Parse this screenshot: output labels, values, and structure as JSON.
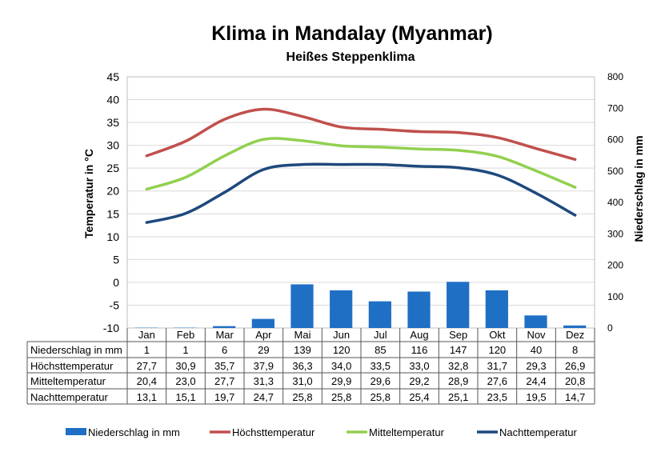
{
  "chart_data": {
    "type": "bar+line",
    "title": "Klima in Mandalay (Myanmar)",
    "subtitle": "Heißes Steppenklima",
    "ylabel": "Temperatur in °C",
    "y2label": "Niederschlag in mm",
    "ylim": [
      -10,
      45
    ],
    "y2lim": [
      0,
      800
    ],
    "yticks": [
      "45",
      "40",
      "35",
      "30",
      "25",
      "20",
      "15",
      "10",
      "5",
      "0",
      "-5",
      "-10"
    ],
    "y2ticks": [
      "800",
      "700",
      "600",
      "500",
      "400",
      "300",
      "200",
      "100",
      "0"
    ],
    "categories": [
      "Jan",
      "Feb",
      "Mar",
      "Apr",
      "Mai",
      "Jun",
      "Jul",
      "Aug",
      "Sep",
      "Okt",
      "Nov",
      "Dez"
    ],
    "grid": true,
    "legend": "bottom",
    "series": [
      {
        "name": "Niederschlag in mm",
        "type": "bar",
        "axis": "right",
        "color": "#1f6fc4",
        "values": [
          1,
          1,
          6,
          29,
          139,
          120,
          85,
          116,
          147,
          120,
          40,
          8
        ],
        "labels": [
          "1",
          "1",
          "6",
          "29",
          "139",
          "120",
          "85",
          "116",
          "147",
          "120",
          "40",
          "8"
        ]
      },
      {
        "name": "Höchsttemperatur",
        "type": "line",
        "axis": "left",
        "color": "#c0504d",
        "values": [
          27.7,
          30.9,
          35.7,
          37.9,
          36.3,
          34.0,
          33.5,
          33.0,
          32.8,
          31.7,
          29.3,
          26.9
        ],
        "labels": [
          "27,7",
          "30,9",
          "35,7",
          "37,9",
          "36,3",
          "34,0",
          "33,5",
          "33,0",
          "32,8",
          "31,7",
          "29,3",
          "26,9"
        ]
      },
      {
        "name": "Mitteltemperatur",
        "type": "line",
        "axis": "left",
        "color": "#92d050",
        "values": [
          20.4,
          23.0,
          27.7,
          31.3,
          31.0,
          29.9,
          29.6,
          29.2,
          28.9,
          27.6,
          24.4,
          20.8
        ],
        "labels": [
          "20,4",
          "23,0",
          "27,7",
          "31,3",
          "31,0",
          "29,9",
          "29,6",
          "29,2",
          "28,9",
          "27,6",
          "24,4",
          "20,8"
        ]
      },
      {
        "name": "Nachttemperatur",
        "type": "line",
        "axis": "left",
        "color": "#1f497d",
        "values": [
          13.1,
          15.1,
          19.7,
          24.7,
          25.8,
          25.8,
          25.8,
          25.4,
          25.1,
          23.5,
          19.5,
          14.7
        ],
        "labels": [
          "13,1",
          "15,1",
          "19,7",
          "24,7",
          "25,8",
          "25,8",
          "25,8",
          "25,4",
          "25,1",
          "23,5",
          "19,5",
          "14,7"
        ]
      }
    ]
  }
}
